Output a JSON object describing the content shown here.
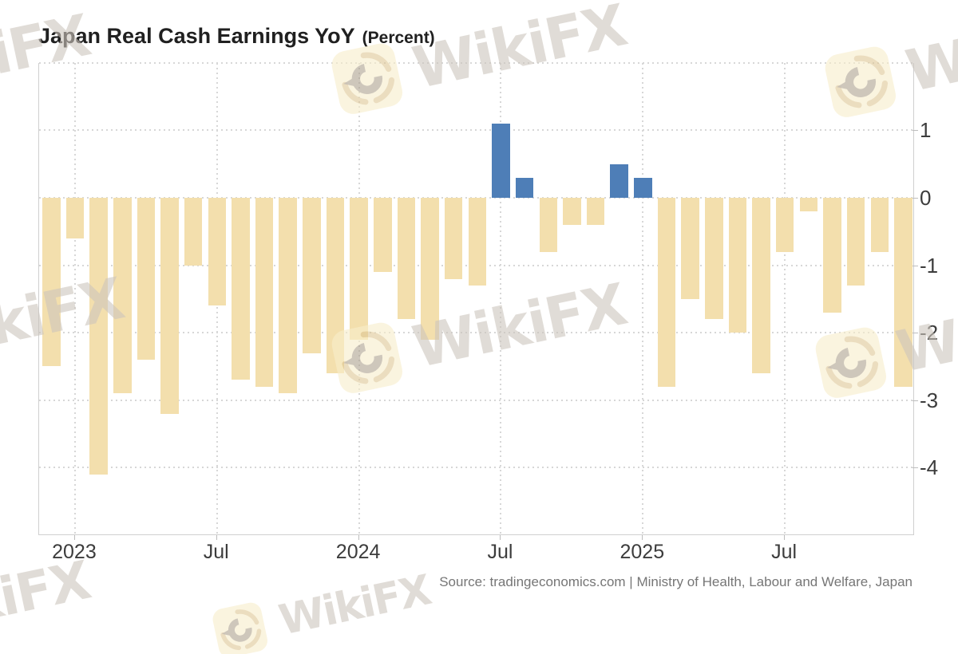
{
  "title": {
    "main": "Japan Real Cash Earnings YoY",
    "unit": "(Percent)"
  },
  "source": "Source: tradingeconomics.com | Ministry of Health, Labour and Welfare, Japan",
  "watermark": {
    "text": "WikiFX"
  },
  "y_axis_tick_labels": [
    "1",
    "0",
    "-1",
    "-2",
    "-3",
    "-4"
  ],
  "x_axis_tick_labels": [
    "2023",
    "Jul",
    "2024",
    "Jul",
    "2025",
    "Jul"
  ],
  "chart_data": {
    "type": "bar",
    "title": "Japan Real Cash Earnings YoY",
    "ylabel": "Percent",
    "xlabel": "",
    "x": [
      "2022-11",
      "2022-12",
      "2023-01",
      "2023-02",
      "2023-03",
      "2023-04",
      "2023-05",
      "2023-06",
      "2023-07",
      "2023-08",
      "2023-09",
      "2023-10",
      "2023-11",
      "2023-12",
      "2024-01",
      "2024-02",
      "2024-03",
      "2024-04",
      "2024-05",
      "2024-06",
      "2024-07",
      "2024-08",
      "2024-09",
      "2024-10",
      "2024-11",
      "2024-12",
      "2025-01",
      "2025-02",
      "2025-03",
      "2025-04",
      "2025-05",
      "2025-06",
      "2025-07",
      "2025-08",
      "2025-09",
      "2025-10",
      "2025-11"
    ],
    "values": [
      -2.5,
      -0.6,
      -4.1,
      -2.9,
      -2.4,
      -3.2,
      -1.0,
      -1.6,
      -2.7,
      -2.8,
      -2.9,
      -2.3,
      -2.6,
      -2.1,
      -1.1,
      -1.8,
      -2.1,
      -1.2,
      -1.3,
      1.1,
      0.3,
      -0.8,
      -0.4,
      -0.4,
      0.5,
      0.3,
      -2.8,
      -1.5,
      -1.8,
      -2.0,
      -2.6,
      -0.8,
      -0.2,
      -1.7,
      -1.3,
      -0.8,
      -2.8
    ],
    "ylim": [
      -5,
      2
    ],
    "yticks": [
      1,
      0,
      -1,
      -2,
      -3,
      -4
    ],
    "xticks": [
      {
        "label": "2023",
        "bar_index": 1
      },
      {
        "label": "Jul",
        "bar_index": 7
      },
      {
        "label": "2024",
        "bar_index": 13
      },
      {
        "label": "Jul",
        "bar_index": 19
      },
      {
        "label": "2025",
        "bar_index": 25
      },
      {
        "label": "Jul",
        "bar_index": 31
      }
    ],
    "bar_colors": {
      "positive": "#4E7EB7",
      "negative": "#F3DFAD"
    },
    "grid": "dotted",
    "legend_position": "none"
  }
}
